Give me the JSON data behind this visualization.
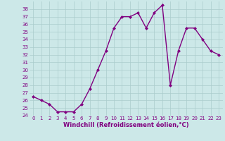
{
  "x": [
    0,
    1,
    2,
    3,
    4,
    5,
    6,
    7,
    8,
    9,
    10,
    11,
    12,
    13,
    14,
    15,
    16,
    17,
    18,
    19,
    20,
    21,
    22,
    23
  ],
  "y": [
    26.5,
    26.0,
    25.5,
    24.5,
    24.5,
    24.5,
    25.5,
    27.5,
    30.0,
    32.5,
    35.5,
    37.0,
    37.0,
    37.5,
    35.5,
    37.5,
    38.5,
    28.0,
    32.5,
    35.5,
    35.5,
    34.0,
    32.5,
    32.0
  ],
  "line_color": "#800080",
  "marker": "D",
  "marker_size": 2,
  "background_color": "#cce8e8",
  "grid_color": "#aacccc",
  "xlabel": "Windchill (Refroidissement éolien,°C)",
  "xlabel_fontsize": 6,
  "xlim": [
    -0.5,
    23.5
  ],
  "ylim": [
    24,
    39
  ],
  "yticks": [
    24,
    25,
    26,
    27,
    28,
    29,
    30,
    31,
    32,
    33,
    34,
    35,
    36,
    37,
    38
  ],
  "xticks": [
    0,
    1,
    2,
    3,
    4,
    5,
    6,
    7,
    8,
    9,
    10,
    11,
    12,
    13,
    14,
    15,
    16,
    17,
    18,
    19,
    20,
    21,
    22,
    23
  ],
  "tick_fontsize": 5,
  "tick_color": "#800080",
  "linewidth": 1.0
}
